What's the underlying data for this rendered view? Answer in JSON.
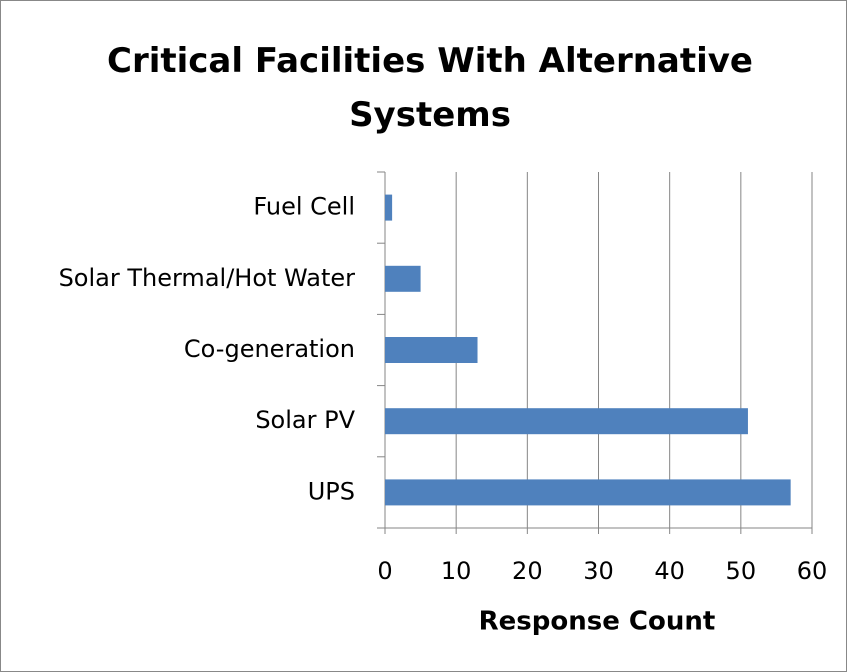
{
  "chart_data": {
    "type": "bar",
    "orientation": "horizontal",
    "title": "Critical Facilities With Alternative Systems",
    "x_label": "Response Count",
    "categories": [
      "Fuel Cell",
      "Solar Thermal/Hot Water",
      "Co-generation",
      "Solar PV",
      "UPS"
    ],
    "values": [
      1,
      5,
      13,
      51,
      57
    ],
    "color": "#4f81bd",
    "xlim": [
      0,
      60
    ],
    "xticks": [
      0,
      10,
      20,
      30,
      40,
      50,
      60
    ],
    "grid": true
  }
}
